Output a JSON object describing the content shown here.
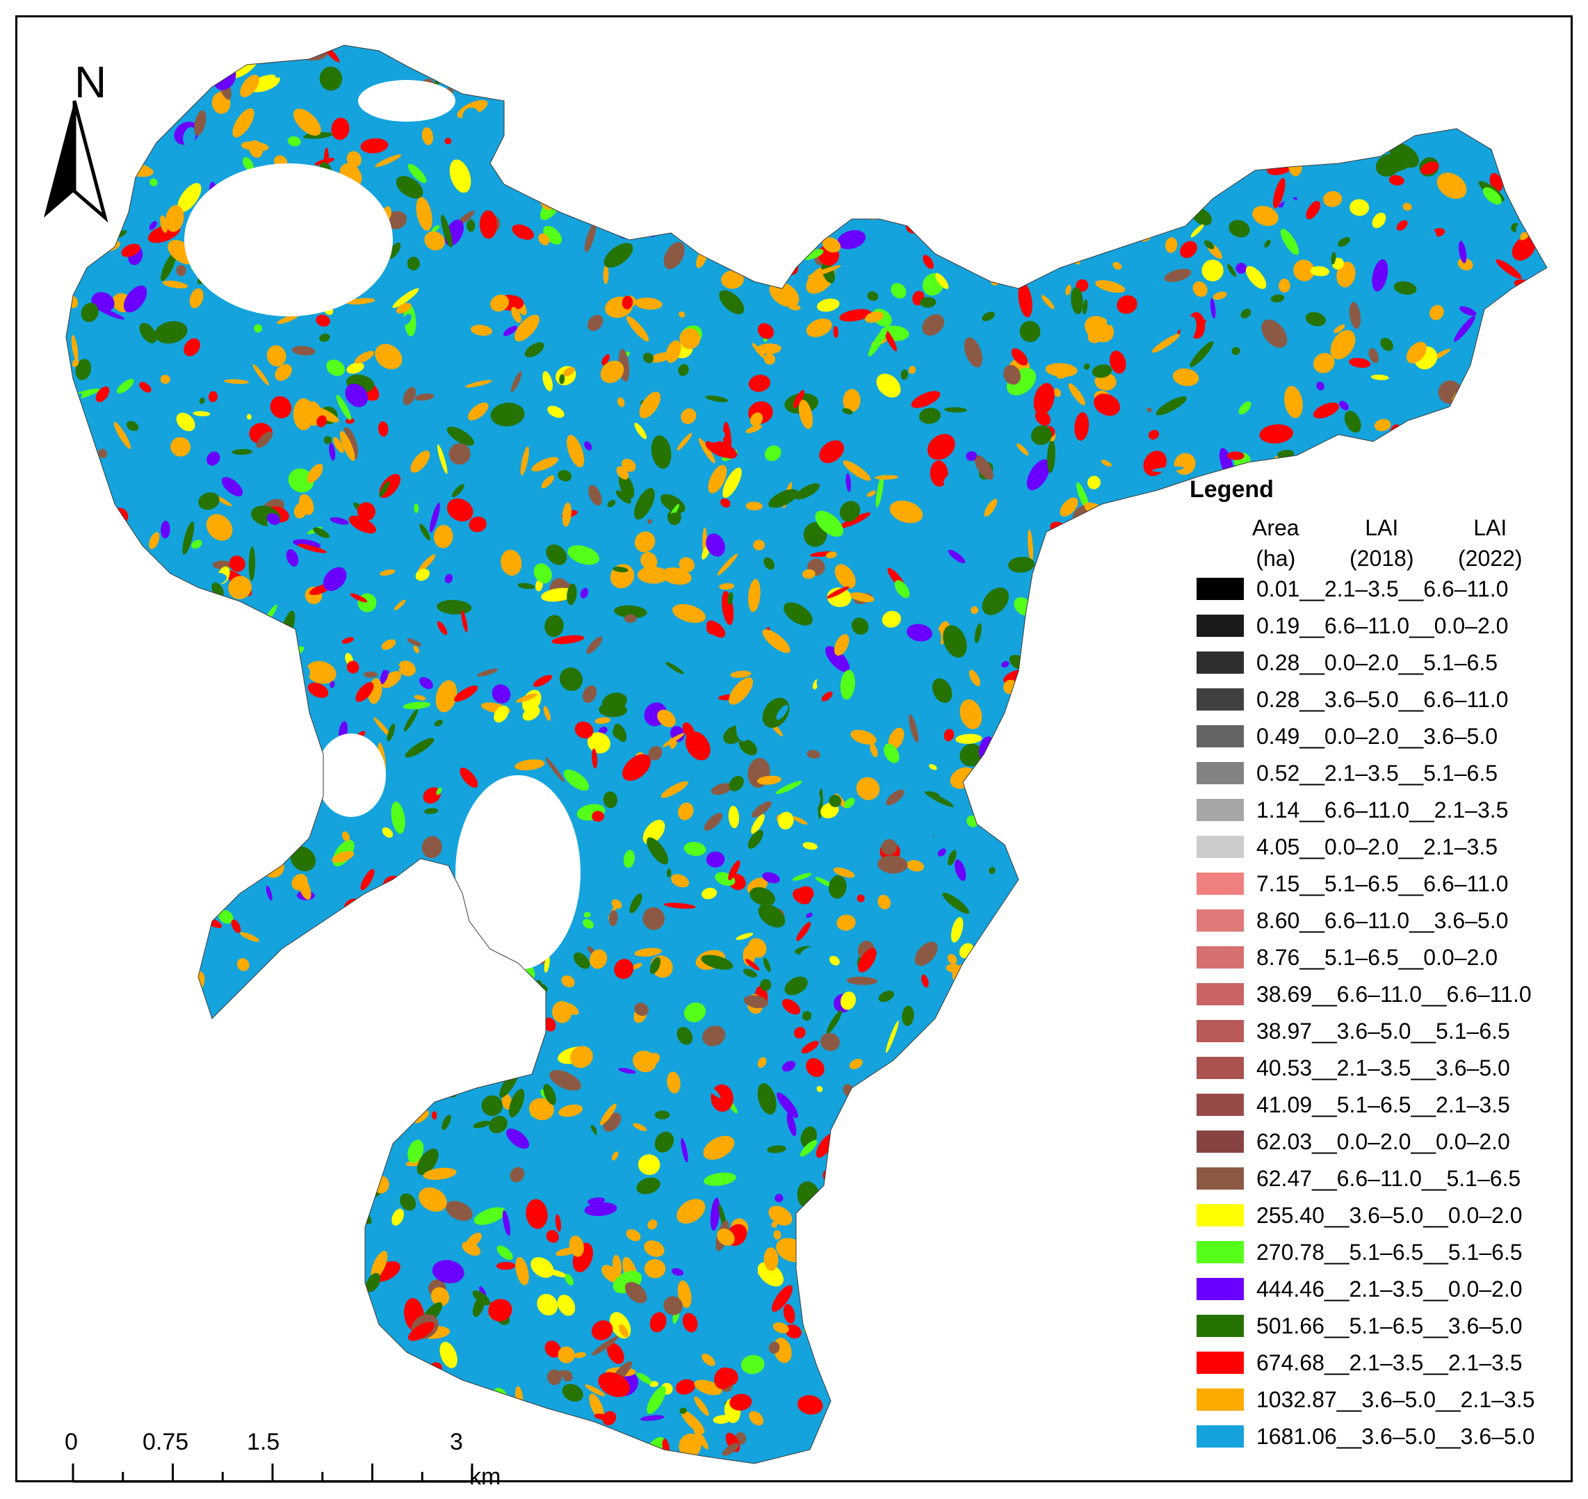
{
  "north_label": "N",
  "legend": {
    "title": "Legend",
    "headers": {
      "area": [
        "Area",
        "(ha)"
      ],
      "lai2018": [
        "LAI",
        "(2018)"
      ],
      "lai2022": [
        "LAI",
        "(2022)"
      ]
    },
    "items": [
      {
        "label": "0.01__2.1–3.5__6.6–11.0",
        "color": "#000000"
      },
      {
        "label": "0.19__6.6–11.0__0.0–2.0",
        "color": "#1a1a1a"
      },
      {
        "label": "0.28__0.0–2.0__5.1–6.5",
        "color": "#2e2e2e"
      },
      {
        "label": "0.28__3.6–5.0__6.6–11.0",
        "color": "#404040"
      },
      {
        "label": "0.49__0.0–2.0__3.6–5.0",
        "color": "#646464"
      },
      {
        "label": "0.52__2.1–3.5__5.1–6.5",
        "color": "#828282"
      },
      {
        "label": "1.14__6.6–11.0__2.1–3.5",
        "color": "#a6a6a6"
      },
      {
        "label": "4.05__0.0–2.0__2.1–3.5",
        "color": "#cccccc"
      },
      {
        "label": "7.15__5.1–6.5__6.6–11.0",
        "color": "#f08080"
      },
      {
        "label": "8.60__6.6–11.0__3.6–5.0",
        "color": "#e07a7a"
      },
      {
        "label": "8.76__5.1–6.5__0.0–2.0",
        "color": "#d4706e"
      },
      {
        "label": "38.69__6.6–11.0__6.6–11.0",
        "color": "#c86564"
      },
      {
        "label": "38.97__3.6–5.0__5.1–6.5",
        "color": "#b85a58"
      },
      {
        "label": "40.53__2.1–3.5__3.6–5.0",
        "color": "#a95250"
      },
      {
        "label": "41.09__5.1–6.5__2.1–3.5",
        "color": "#984a48"
      },
      {
        "label": "62.03__0.0–2.0__0.0–2.0",
        "color": "#884242"
      },
      {
        "label": "62.47__6.6–11.0__5.1–6.5",
        "color": "#8c5a44"
      },
      {
        "label": "255.40__3.6–5.0__0.0–2.0",
        "color": "#ffff00"
      },
      {
        "label": "270.78__5.1–6.5__5.1–6.5",
        "color": "#55ff1a"
      },
      {
        "label": "444.46__2.1–3.5__0.0–2.0",
        "color": "#6a00ff"
      },
      {
        "label": "501.66__5.1–6.5__3.6–5.0",
        "color": "#267300"
      },
      {
        "label": "674.68__2.1–3.5__2.1–3.5",
        "color": "#ff0000"
      },
      {
        "label": "1032.87__3.6–5.0__2.1–3.5",
        "color": "#ffaa00"
      },
      {
        "label": "1681.06__3.6–5.0__3.6–5.0",
        "color": "#14a3dc"
      }
    ]
  },
  "scale_bar": {
    "ticks": [
      "0",
      "0.75",
      "1.5",
      "3"
    ],
    "unit": "km"
  }
}
